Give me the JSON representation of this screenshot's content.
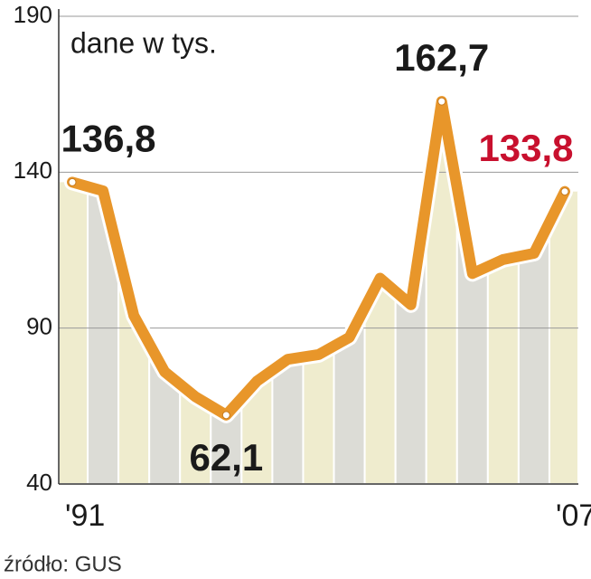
{
  "chart_data": {
    "type": "line",
    "subtitle": "dane w tys.",
    "categories": [
      "'91",
      null,
      null,
      null,
      null,
      null,
      null,
      null,
      null,
      null,
      null,
      null,
      null,
      null,
      null,
      null,
      "'07"
    ],
    "values": [
      136.8,
      134,
      94,
      76,
      68,
      62.1,
      73,
      80,
      81.5,
      87,
      106,
      97.5,
      162.7,
      107.5,
      112,
      114,
      133.8
    ],
    "value_labels": [
      "136,8",
      null,
      null,
      null,
      null,
      "62,1",
      null,
      null,
      null,
      null,
      null,
      null,
      "162,7",
      null,
      null,
      null,
      "133,8"
    ],
    "color": "#e8962a",
    "label_color": "#1a1a1a",
    "last_label_color": "#c8102e",
    "area_colors": [
      "#efecce",
      "#dcdcd6"
    ],
    "ylim": [
      40,
      190
    ],
    "yticks": [
      40,
      90,
      140,
      190
    ],
    "grid": true,
    "source": "źródło: GUS"
  }
}
